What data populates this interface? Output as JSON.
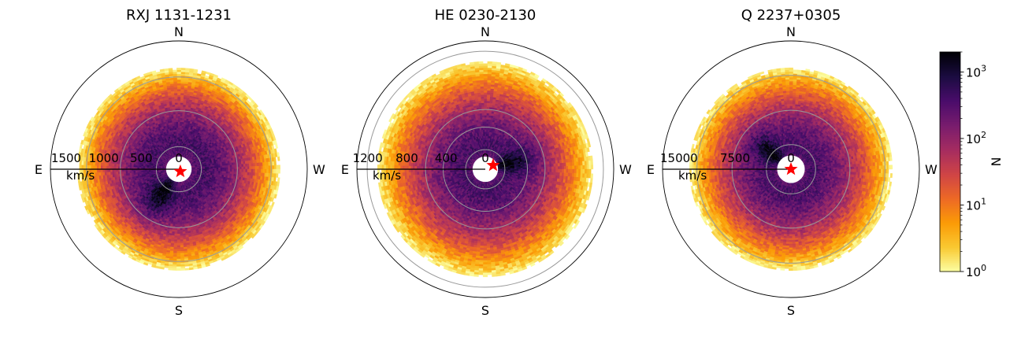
{
  "chart_data": [
    {
      "type": "heatmap",
      "projection": "polar",
      "title": "RXJ 1131-1231",
      "directions": {
        "north": "N",
        "south": "S",
        "east": "E",
        "west": "W"
      },
      "radial_unit": "km/s",
      "radial_ticks": [
        {
          "value": 0,
          "label": "0"
        },
        {
          "value": 500,
          "label": "500"
        },
        {
          "value": 1000,
          "label": "1000"
        },
        {
          "value": 1500,
          "label": "1500"
        }
      ],
      "r_max": 1710,
      "inner_hole_radius": 170,
      "ring_radii": [
        300,
        780,
        1230
      ],
      "peak_radius": 330,
      "peak_angle_deg": 235,
      "outer_extent": 1350,
      "star_offset": {
        "east": -20,
        "north": -30
      }
    },
    {
      "type": "heatmap",
      "projection": "polar",
      "title": "HE 0230-2130",
      "directions": {
        "north": "N",
        "south": "S",
        "east": "E",
        "west": "W"
      },
      "radial_unit": "km/s",
      "radial_ticks": [
        {
          "value": 0,
          "label": "0"
        },
        {
          "value": 400,
          "label": "400"
        },
        {
          "value": 800,
          "label": "800"
        },
        {
          "value": 1200,
          "label": "1200"
        }
      ],
      "r_max": 1310,
      "inner_hole_radius": 130,
      "ring_radii": [
        200,
        430,
        610,
        1205
      ],
      "peak_radius": 200,
      "peak_angle_deg": 15,
      "outer_extent": 1100,
      "star_offset": {
        "east": -80,
        "north": 40
      }
    },
    {
      "type": "heatmap",
      "projection": "polar",
      "title": "Q 2237+0305",
      "directions": {
        "north": "N",
        "south": "S",
        "east": "E",
        "west": "W"
      },
      "radial_unit": "km/s",
      "radial_ticks": [
        {
          "value": 0,
          "label": "0"
        },
        {
          "value": 7500,
          "label": "7500"
        },
        {
          "value": 15000,
          "label": "15000"
        }
      ],
      "r_max": 17200,
      "inner_hole_radius": 1850,
      "ring_radii": [
        3300,
        7900,
        12600
      ],
      "peak_radius": 2700,
      "peak_angle_deg": 140,
      "outer_extent": 13600,
      "star_offset": {
        "east": 0,
        "north": 0
      }
    }
  ],
  "colorbar": {
    "label": "N",
    "scale": "log",
    "colormap": "inferno_r",
    "min": 1,
    "max": 2000,
    "ticks": [
      {
        "value": 1,
        "base": "10",
        "exp": "0"
      },
      {
        "value": 10,
        "base": "10",
        "exp": "1"
      },
      {
        "value": 100,
        "base": "10",
        "exp": "2"
      },
      {
        "value": 1000,
        "base": "10",
        "exp": "3"
      }
    ]
  },
  "colors": {
    "star": "#ff0000",
    "ring": "#999999",
    "frame": "#000000",
    "cmap_stops": [
      "#fcffa4",
      "#f9c932",
      "#fb9b06",
      "#ed6925",
      "#cf4446",
      "#a52c60",
      "#781c6d",
      "#4a0c6b",
      "#1b0c41",
      "#000004"
    ]
  }
}
